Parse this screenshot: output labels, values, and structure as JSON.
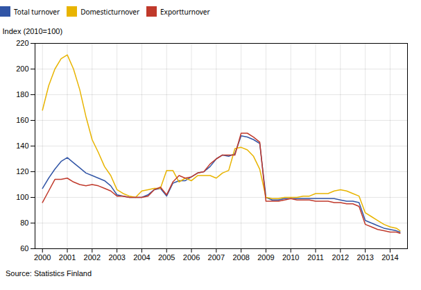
{
  "chart_data": {
    "type": "line",
    "ylabel": "Index (2010=100)",
    "caption": "Source: Statistics Finland",
    "xlim": [
      1999.7,
      2014.7
    ],
    "xticks": [
      2000,
      2001,
      2002,
      2003,
      2004,
      2005,
      2006,
      2007,
      2008,
      2009,
      2010,
      2011,
      2012,
      2013,
      2014
    ],
    "ylim": [
      60,
      220
    ],
    "yticks": [
      60,
      80,
      100,
      120,
      140,
      160,
      180,
      200,
      220
    ],
    "grid": true,
    "legend": "top",
    "x": [
      2000.0,
      2000.25,
      2000.5,
      2000.75,
      2001.0,
      2001.25,
      2001.5,
      2001.75,
      2002.0,
      2002.25,
      2002.5,
      2002.75,
      2003.0,
      2003.25,
      2003.5,
      2003.75,
      2004.0,
      2004.25,
      2004.5,
      2004.75,
      2005.0,
      2005.25,
      2005.5,
      2005.75,
      2006.0,
      2006.25,
      2006.5,
      2006.75,
      2007.0,
      2007.25,
      2007.5,
      2007.75,
      2008.0,
      2008.25,
      2008.5,
      2008.75,
      2009.0,
      2009.25,
      2009.5,
      2009.75,
      2010.0,
      2010.25,
      2010.5,
      2010.75,
      2011.0,
      2011.25,
      2011.5,
      2011.75,
      2012.0,
      2012.25,
      2012.5,
      2012.75,
      2013.0,
      2013.25,
      2013.5,
      2013.75,
      2014.0,
      2014.25,
      2014.4
    ],
    "series": [
      {
        "name": "Total turnover",
        "color": "#3155A6",
        "values": [
          107,
          115,
          122,
          128,
          131,
          127,
          123,
          119,
          117,
          115,
          113,
          109,
          102,
          101,
          100,
          100,
          100,
          102,
          106,
          107,
          101,
          111,
          113,
          113,
          116,
          119,
          120,
          124,
          130,
          133,
          132,
          134,
          148,
          147,
          145,
          142,
          100,
          98,
          98,
          99,
          99,
          99,
          99,
          99,
          99,
          99,
          99,
          99,
          98,
          97,
          97,
          96,
          82,
          80,
          78,
          76,
          75,
          74,
          73
        ]
      },
      {
        "name": "Domesticturnover",
        "color": "#E8B400",
        "values": [
          168,
          187,
          200,
          208,
          211,
          200,
          184,
          163,
          145,
          135,
          124,
          117,
          106,
          103,
          101,
          100,
          105,
          106,
          107,
          107,
          121,
          121,
          112,
          115,
          113,
          117,
          117,
          117,
          115,
          119,
          121,
          138,
          139,
          137,
          132,
          122,
          100,
          99,
          99,
          100,
          100,
          100,
          101,
          101,
          103,
          103,
          103,
          105,
          106,
          105,
          103,
          101,
          88,
          85,
          82,
          79,
          77,
          76,
          74
        ]
      },
      {
        "name": "Exportturnover",
        "color": "#C0392B",
        "values": [
          96,
          105,
          114,
          114,
          115,
          112,
          110,
          109,
          110,
          109,
          107,
          105,
          101,
          101,
          100,
          100,
          100,
          101,
          106,
          108,
          102,
          112,
          117,
          115,
          116,
          119,
          120,
          126,
          130,
          133,
          133,
          133,
          150,
          150,
          147,
          143,
          97,
          97,
          97,
          98,
          99,
          98,
          98,
          98,
          97,
          97,
          97,
          96,
          96,
          95,
          95,
          93,
          79,
          77,
          75,
          74,
          73,
          73,
          72
        ]
      }
    ]
  }
}
